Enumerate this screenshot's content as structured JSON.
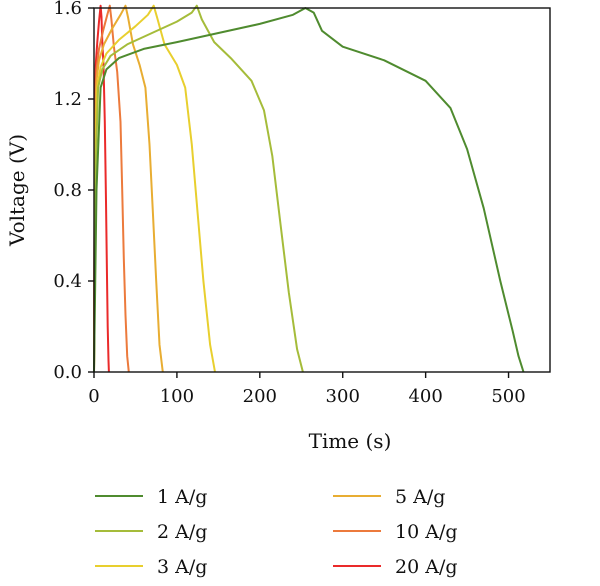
{
  "chart_data": {
    "type": "line",
    "title": "",
    "xlabel": "Time (s)",
    "ylabel": "Voltage (V)",
    "xlim": [
      0,
      550
    ],
    "ylim": [
      0,
      1.6
    ],
    "xticks": [
      0,
      100,
      200,
      300,
      400,
      500
    ],
    "yticks": [
      0.0,
      0.4,
      0.8,
      1.2,
      1.6
    ],
    "xtick_labels": [
      "0",
      "100",
      "200",
      "300",
      "400",
      "500"
    ],
    "ytick_labels": [
      "0.0",
      "0.4",
      "0.8",
      "1.2",
      "1.6"
    ],
    "grid": false,
    "legend_position": "bottom",
    "series": [
      {
        "name": "1 A/g",
        "color": "#4f8b2f",
        "x": [
          0,
          3,
          8,
          15,
          30,
          60,
          100,
          150,
          200,
          240,
          255,
          265,
          275,
          300,
          350,
          400,
          430,
          450,
          470,
          490,
          505,
          512,
          518
        ],
        "y": [
          0.0,
          0.8,
          1.25,
          1.33,
          1.38,
          1.42,
          1.45,
          1.49,
          1.53,
          1.57,
          1.6,
          1.58,
          1.5,
          1.43,
          1.37,
          1.28,
          1.16,
          0.98,
          0.72,
          0.4,
          0.18,
          0.07,
          0.0
        ]
      },
      {
        "name": "2 A/g",
        "color": "#a5bc3a",
        "x": [
          0,
          2,
          5,
          10,
          20,
          40,
          70,
          100,
          118,
          124,
          130,
          145,
          165,
          190,
          205,
          215,
          225,
          235,
          245,
          252
        ],
        "y": [
          0.0,
          0.9,
          1.25,
          1.33,
          1.39,
          1.44,
          1.49,
          1.54,
          1.58,
          1.61,
          1.55,
          1.45,
          1.38,
          1.28,
          1.15,
          0.95,
          0.65,
          0.35,
          0.1,
          0.0
        ]
      },
      {
        "name": "3 A/g",
        "color": "#e8cf2e",
        "x": [
          0,
          2,
          4,
          8,
          15,
          30,
          50,
          65,
          72,
          76,
          85,
          100,
          110,
          118,
          125,
          132,
          140,
          146
        ],
        "y": [
          0.0,
          0.9,
          1.25,
          1.34,
          1.4,
          1.46,
          1.52,
          1.57,
          1.61,
          1.56,
          1.44,
          1.35,
          1.25,
          1.0,
          0.7,
          0.4,
          0.12,
          0.0
        ]
      },
      {
        "name": "5 A/g",
        "color": "#e8ad32",
        "x": [
          0,
          1,
          3,
          6,
          12,
          22,
          32,
          38,
          41,
          47,
          55,
          62,
          67,
          71,
          75,
          79,
          83
        ],
        "y": [
          0.0,
          0.9,
          1.28,
          1.37,
          1.44,
          1.51,
          1.57,
          1.61,
          1.56,
          1.44,
          1.35,
          1.25,
          1.0,
          0.7,
          0.4,
          0.12,
          0.0
        ]
      },
      {
        "name": "10 A/g",
        "color": "#ec7a3c",
        "x": [
          0,
          1,
          3,
          6,
          11,
          16,
          19,
          21,
          24,
          28,
          32,
          34,
          36,
          38,
          40,
          42
        ],
        "y": [
          0.0,
          1.0,
          1.33,
          1.42,
          1.5,
          1.57,
          1.61,
          1.55,
          1.43,
          1.32,
          1.1,
          0.8,
          0.5,
          0.25,
          0.07,
          0.0
        ]
      },
      {
        "name": "20 A/g",
        "color": "#ea2a2a",
        "x": [
          0,
          1,
          2,
          4,
          6,
          8,
          9,
          10,
          11.5,
          13,
          14.5,
          15.5,
          16.5,
          17.5,
          18
        ],
        "y": [
          0.0,
          1.05,
          1.35,
          1.45,
          1.54,
          1.61,
          1.56,
          1.45,
          1.35,
          1.1,
          0.75,
          0.45,
          0.2,
          0.05,
          0.0
        ]
      }
    ]
  }
}
